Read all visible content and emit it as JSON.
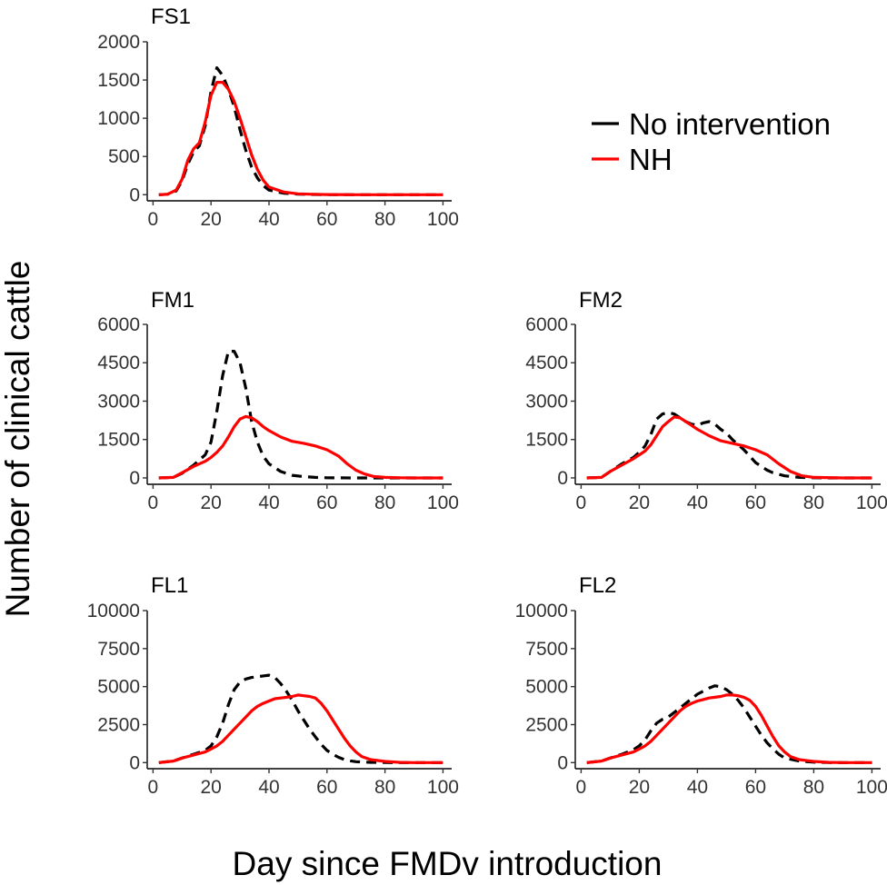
{
  "chart_data": {
    "type": "line",
    "ylabel": "Number of clinical cattle",
    "xlabel": "Day since FMDv introduction",
    "legend": {
      "placement": "top-right",
      "entries": [
        {
          "name": "No intervention",
          "color": "#000000",
          "dash": "dashed"
        },
        {
          "name": "NH",
          "color": "#ff0000",
          "dash": "solid"
        }
      ]
    },
    "panels": [
      {
        "id": "FS1",
        "title": "FS1",
        "xlim": [
          -2,
          103
        ],
        "xticks": [
          0,
          20,
          40,
          60,
          80,
          100
        ],
        "ylim": [
          -80,
          2000
        ],
        "yticks": [
          0,
          500,
          1000,
          1500,
          2000
        ],
        "series": [
          {
            "name": "No intervention",
            "color": "#000000",
            "dash": "dashed",
            "x": [
              2,
              5,
              8,
              10,
              12,
              14,
              16,
              18,
              20,
              22,
              24,
              26,
              28,
              30,
              32,
              34,
              36,
              38,
              40,
              45,
              50,
              55,
              60,
              70,
              80,
              90,
              100
            ],
            "y": [
              0,
              5,
              50,
              180,
              400,
              560,
              640,
              900,
              1350,
              1660,
              1560,
              1380,
              1150,
              850,
              580,
              360,
              220,
              120,
              60,
              20,
              8,
              3,
              1,
              0,
              0,
              0,
              0
            ]
          },
          {
            "name": "NH",
            "color": "#ff0000",
            "dash": "solid",
            "x": [
              2,
              5,
              8,
              10,
              12,
              14,
              16,
              18,
              20,
              22,
              24,
              26,
              28,
              30,
              32,
              34,
              36,
              38,
              40,
              45,
              50,
              55,
              60,
              70,
              80,
              90,
              100
            ],
            "y": [
              0,
              5,
              60,
              200,
              450,
              600,
              680,
              950,
              1300,
              1470,
              1470,
              1380,
              1220,
              1000,
              760,
              520,
              330,
              190,
              100,
              35,
              12,
              5,
              2,
              0,
              0,
              0,
              0
            ]
          }
        ]
      },
      {
        "id": "FM1",
        "title": "FM1",
        "xlim": [
          -2,
          103
        ],
        "xticks": [
          0,
          20,
          40,
          60,
          80,
          100
        ],
        "ylim": [
          -250,
          6000
        ],
        "yticks": [
          0,
          1500,
          3000,
          4500,
          6000
        ],
        "series": [
          {
            "name": "No intervention",
            "color": "#000000",
            "dash": "dashed",
            "x": [
              2,
              7,
              10,
              14,
              18,
              20,
              22,
              24,
              26,
              28,
              30,
              32,
              34,
              36,
              38,
              40,
              44,
              48,
              52,
              56,
              60,
              70,
              80,
              90,
              100
            ],
            "y": [
              0,
              20,
              180,
              500,
              900,
              1400,
              2600,
              4000,
              4950,
              4950,
              4500,
              3500,
              2200,
              1400,
              850,
              550,
              250,
              100,
              50,
              20,
              5,
              0,
              0,
              0,
              0
            ]
          },
          {
            "name": "NH",
            "color": "#ff0000",
            "dash": "solid",
            "x": [
              2,
              7,
              10,
              14,
              18,
              20,
              22,
              24,
              26,
              28,
              30,
              32,
              34,
              36,
              38,
              40,
              44,
              48,
              52,
              56,
              60,
              64,
              67,
              70,
              73,
              76,
              80,
              85,
              90,
              100
            ],
            "y": [
              0,
              20,
              200,
              450,
              650,
              800,
              1000,
              1250,
              1600,
              2000,
              2300,
              2400,
              2350,
              2200,
              2000,
              1850,
              1600,
              1430,
              1350,
              1250,
              1100,
              850,
              550,
              300,
              150,
              60,
              20,
              5,
              0,
              0
            ]
          }
        ]
      },
      {
        "id": "FM2",
        "title": "FM2",
        "xlim": [
          -2,
          103
        ],
        "xticks": [
          0,
          20,
          40,
          60,
          80,
          100
        ],
        "ylim": [
          -250,
          6000
        ],
        "yticks": [
          0,
          1500,
          3000,
          4500,
          6000
        ],
        "series": [
          {
            "name": "No intervention",
            "color": "#000000",
            "dash": "dashed",
            "x": [
              2,
              7,
              10,
              14,
              18,
              20,
              22,
              24,
              26,
              28,
              30,
              32,
              34,
              36,
              38,
              40,
              42,
              44,
              46,
              48,
              50,
              52,
              54,
              56,
              58,
              60,
              62,
              64,
              66,
              70,
              75,
              80,
              85,
              90,
              100
            ],
            "y": [
              0,
              20,
              250,
              550,
              800,
              1000,
              1250,
              1700,
              2300,
              2500,
              2550,
              2500,
              2350,
              2200,
              2100,
              2050,
              2150,
              2200,
              2100,
              1900,
              1750,
              1500,
              1300,
              1100,
              850,
              600,
              450,
              300,
              200,
              80,
              20,
              5,
              0,
              0,
              0
            ]
          },
          {
            "name": "NH",
            "color": "#ff0000",
            "dash": "solid",
            "x": [
              2,
              7,
              10,
              14,
              18,
              20,
              22,
              24,
              26,
              28,
              30,
              32,
              34,
              36,
              38,
              40,
              44,
              48,
              52,
              56,
              60,
              64,
              68,
              72,
              76,
              80,
              90,
              100
            ],
            "y": [
              0,
              20,
              250,
              500,
              750,
              900,
              1050,
              1300,
              1650,
              2000,
              2200,
              2380,
              2350,
              2200,
              2050,
              1900,
              1650,
              1450,
              1350,
              1250,
              1100,
              900,
              550,
              250,
              80,
              20,
              0,
              0
            ]
          }
        ]
      },
      {
        "id": "FL1",
        "title": "FL1",
        "xlim": [
          -2,
          103
        ],
        "xticks": [
          0,
          20,
          40,
          60,
          80,
          100
        ],
        "ylim": [
          -400,
          10000
        ],
        "yticks": [
          0,
          2500,
          5000,
          7500,
          10000
        ],
        "series": [
          {
            "name": "No intervention",
            "color": "#000000",
            "dash": "dashed",
            "x": [
              2,
              7,
              10,
              14,
              18,
              20,
              22,
              24,
              26,
              28,
              30,
              32,
              34,
              36,
              38,
              40,
              42,
              44,
              46,
              48,
              50,
              52,
              54,
              56,
              58,
              60,
              62,
              64,
              66,
              68,
              70,
              75,
              80,
              85,
              90,
              100
            ],
            "y": [
              0,
              100,
              300,
              550,
              800,
              1100,
              1700,
              2600,
              3800,
              4800,
              5300,
              5500,
              5600,
              5650,
              5700,
              5750,
              5600,
              5200,
              4700,
              4100,
              3400,
              2800,
              2200,
              1700,
              1200,
              800,
              550,
              350,
              200,
              120,
              60,
              20,
              5,
              0,
              0,
              0
            ]
          },
          {
            "name": "NH",
            "color": "#ff0000",
            "dash": "solid",
            "x": [
              2,
              7,
              10,
              14,
              18,
              20,
              22,
              24,
              26,
              28,
              30,
              32,
              34,
              36,
              38,
              40,
              42,
              44,
              46,
              48,
              50,
              52,
              54,
              56,
              58,
              60,
              62,
              64,
              66,
              68,
              70,
              72,
              75,
              80,
              85,
              90,
              100
            ],
            "y": [
              0,
              100,
              300,
              500,
              700,
              900,
              1100,
              1400,
              1800,
              2200,
              2600,
              3000,
              3400,
              3700,
              3900,
              4050,
              4200,
              4250,
              4300,
              4350,
              4450,
              4400,
              4350,
              4250,
              3900,
              3400,
              2800,
              2200,
              1600,
              1100,
              700,
              400,
              200,
              80,
              20,
              0,
              0
            ]
          }
        ]
      },
      {
        "id": "FL2",
        "title": "FL2",
        "xlim": [
          -2,
          103
        ],
        "xticks": [
          0,
          20,
          40,
          60,
          80,
          100
        ],
        "ylim": [
          -400,
          10000
        ],
        "yticks": [
          0,
          2500,
          5000,
          7500,
          10000
        ],
        "series": [
          {
            "name": "No intervention",
            "color": "#000000",
            "dash": "dashed",
            "x": [
              2,
              7,
              10,
              14,
              18,
              20,
              22,
              24,
              26,
              28,
              30,
              32,
              34,
              36,
              38,
              40,
              42,
              44,
              46,
              48,
              50,
              52,
              54,
              56,
              58,
              60,
              62,
              64,
              66,
              68,
              70,
              75,
              80,
              85,
              90,
              100
            ],
            "y": [
              0,
              100,
              300,
              550,
              850,
              1100,
              1500,
              2100,
              2600,
              2850,
              3000,
              3300,
              3600,
              3900,
              4200,
              4500,
              4700,
              4900,
              5050,
              5000,
              4800,
              4500,
              4100,
              3600,
              3000,
              2400,
              1800,
              1300,
              900,
              550,
              300,
              100,
              30,
              5,
              0,
              0
            ]
          },
          {
            "name": "NH",
            "color": "#ff0000",
            "dash": "solid",
            "x": [
              2,
              7,
              10,
              14,
              18,
              20,
              22,
              24,
              26,
              28,
              30,
              32,
              34,
              36,
              38,
              40,
              42,
              44,
              46,
              48,
              50,
              52,
              54,
              56,
              58,
              60,
              62,
              64,
              66,
              68,
              70,
              72,
              75,
              80,
              85,
              90,
              100
            ],
            "y": [
              0,
              100,
              300,
              500,
              700,
              900,
              1100,
              1400,
              1800,
              2200,
              2600,
              3000,
              3400,
              3700,
              3900,
              4050,
              4150,
              4250,
              4300,
              4350,
              4450,
              4450,
              4400,
              4300,
              4100,
              3700,
              3100,
              2400,
              1700,
              1100,
              700,
              400,
              200,
              80,
              20,
              0,
              0
            ]
          }
        ]
      }
    ]
  }
}
